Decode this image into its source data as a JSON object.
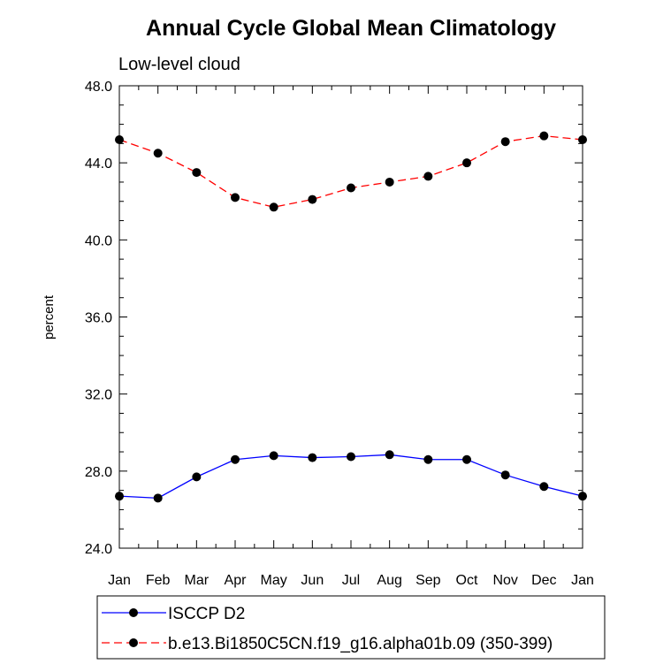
{
  "chart_data": {
    "type": "line",
    "title": "Annual Cycle Global Mean Climatology",
    "subtitle": "Low-level cloud",
    "xlabel": "",
    "ylabel": "percent",
    "categories": [
      "Jan",
      "Feb",
      "Mar",
      "Apr",
      "May",
      "Jun",
      "Jul",
      "Aug",
      "Sep",
      "Oct",
      "Nov",
      "Dec",
      "Jan"
    ],
    "ylim": [
      24.0,
      48.0
    ],
    "yticks": [
      "24.0",
      "28.0",
      "32.0",
      "36.0",
      "40.0",
      "44.0",
      "48.0"
    ],
    "grid": false,
    "legend_position": "bottom",
    "series": [
      {
        "name": "ISCCP D2",
        "color": "#0000ff",
        "dash": "solid",
        "marker": "circle",
        "values": [
          26.7,
          26.6,
          27.7,
          28.6,
          28.8,
          28.7,
          28.75,
          28.85,
          28.6,
          28.6,
          27.8,
          27.2,
          26.7
        ]
      },
      {
        "name": "b.e13.Bi1850C5CN.f19_g16.alpha01b.09 (350-399)",
        "color": "#ff0000",
        "dash": "dashed",
        "marker": "circle",
        "values": [
          45.2,
          44.5,
          43.5,
          42.2,
          41.7,
          42.1,
          42.7,
          43.0,
          43.3,
          44.0,
          45.1,
          45.4,
          45.2
        ]
      }
    ]
  }
}
